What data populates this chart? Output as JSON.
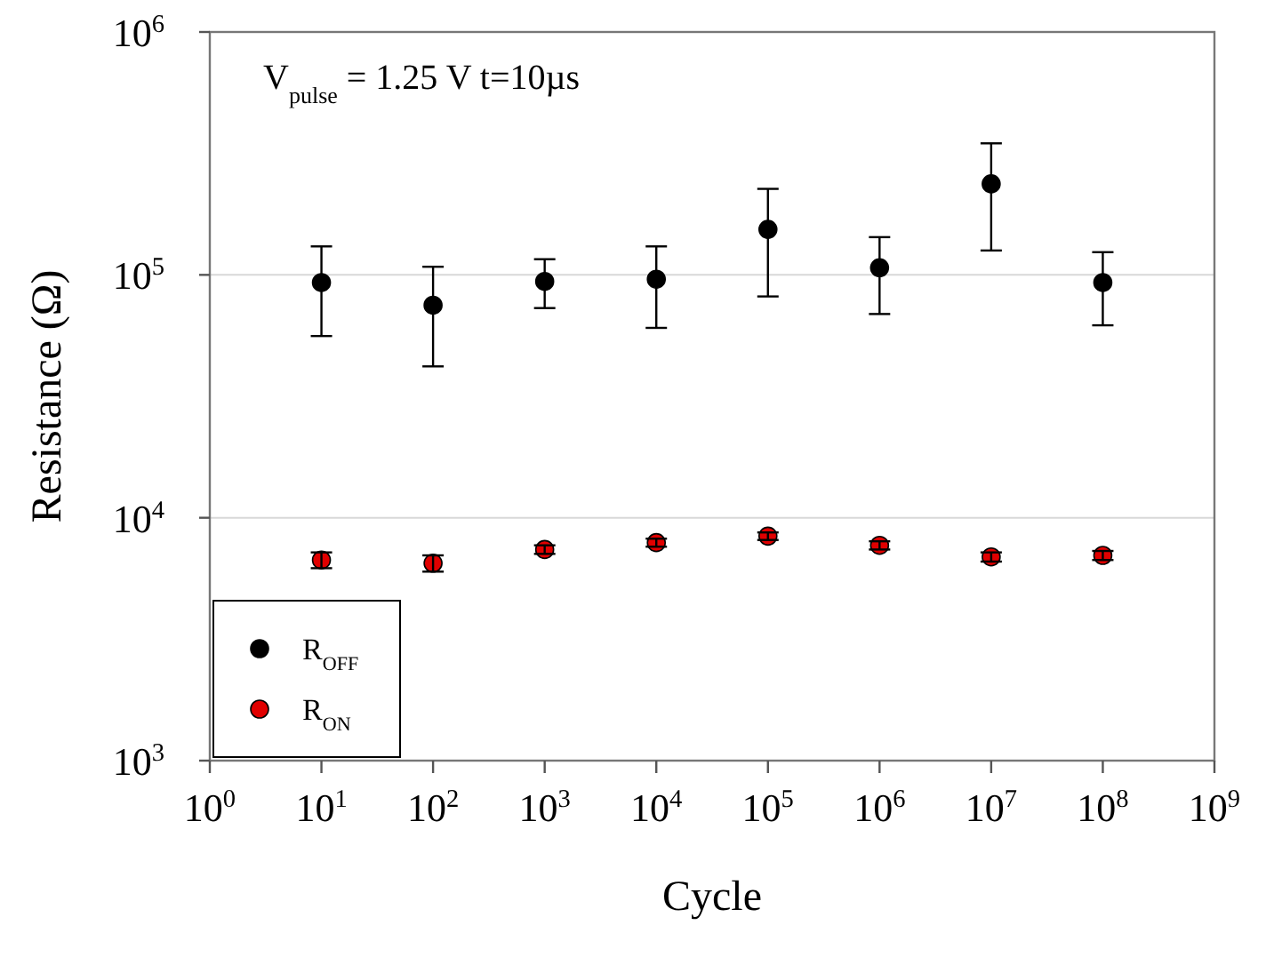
{
  "chart_data": {
    "type": "scatter",
    "xlabel": "Cycle",
    "ylabel": "Resistance (Ω)",
    "log": "xy",
    "grid": "y",
    "legend": "bottom left",
    "marker": "circle",
    "annotations": [
      "V$_{pulse}$ = 1.25 V  t=10µs"
    ],
    "xlim": [
      1,
      1000000000
    ],
    "ylim": [
      1000,
      1000000
    ],
    "xticks": [
      {
        "value": 1,
        "label": "10$^{0}$"
      },
      {
        "value": 10,
        "label": "10$^{1}$"
      },
      {
        "value": 100,
        "label": "10$^{2}$"
      },
      {
        "value": 1000,
        "label": "10$^{3}$"
      },
      {
        "value": 10000,
        "label": "10$^{4}$"
      },
      {
        "value": 100000,
        "label": "10$^{5}$"
      },
      {
        "value": 1000000,
        "label": "10$^{6}$"
      },
      {
        "value": 10000000,
        "label": "10$^{7}$"
      },
      {
        "value": 100000000,
        "label": "10$^{8}$"
      },
      {
        "value": 1000000000,
        "label": "10$^{9}$"
      }
    ],
    "yticks": [
      {
        "value": 1000,
        "label": "10$^{3}$"
      },
      {
        "value": 10000,
        "label": "10$^{4}$"
      },
      {
        "value": 100000,
        "label": "10$^{5}$"
      },
      {
        "value": 1000000,
        "label": "10$^{6}$"
      }
    ],
    "x": [
      10,
      100,
      1000,
      10000,
      100000,
      1000000,
      10000000,
      100000000
    ],
    "series": [
      {
        "name": "R$_{OFF}$",
        "color": "#000000",
        "values": [
          93000,
          75000,
          94000,
          96000,
          154000,
          107000,
          237000,
          93000
        ],
        "errors": [
          [
            56000,
            131000
          ],
          [
            42000,
            108000
          ],
          [
            73000,
            116000
          ],
          [
            60500,
            131000
          ],
          [
            81500,
            226000
          ],
          [
            69000,
            143000
          ],
          [
            126000,
            348000
          ],
          [
            62000,
            124000
          ]
        ]
      },
      {
        "name": "R$_{ON}$",
        "color": "#e00000",
        "values": [
          6700,
          6500,
          7400,
          7900,
          8400,
          7700,
          6900,
          7000
        ],
        "errors": [
          [
            6200,
            7200
          ],
          [
            6000,
            7000
          ],
          [
            7100,
            7700
          ],
          [
            7600,
            8200
          ],
          [
            8100,
            8700
          ],
          [
            7400,
            8000
          ],
          [
            6600,
            7200
          ],
          [
            6700,
            7300
          ]
        ]
      }
    ]
  }
}
